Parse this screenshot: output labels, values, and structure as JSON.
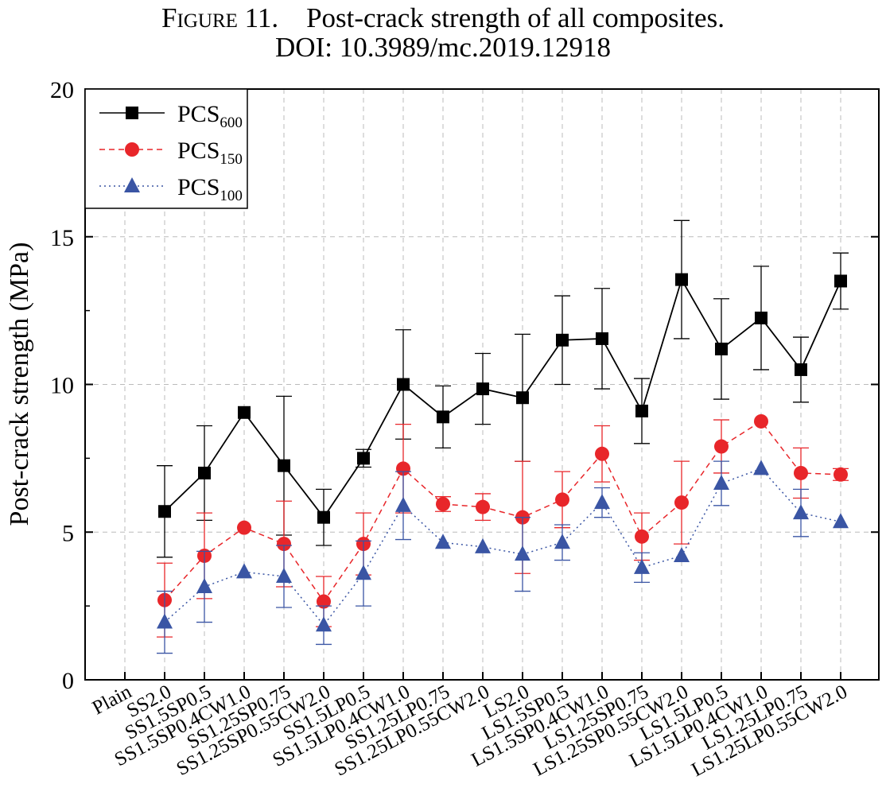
{
  "figure": {
    "label": "Figure 11.",
    "caption": "Post-crack strength of all composites.",
    "doi": "DOI: 10.3989/mc.2019.12918"
  },
  "chart_data": {
    "type": "line",
    "ylabel": "Post-crack strength (MPa)",
    "xlabel": "",
    "ylim": [
      0,
      20
    ],
    "yticks": [
      0,
      5,
      10,
      15,
      20
    ],
    "grid": true,
    "legend_position": "top-left",
    "categories": [
      "Plain",
      "SS2.0",
      "SS1.5SP0.5",
      "SS1.5SP0.4CW1.0",
      "SS1.25SP0.75",
      "SS1.25SP0.55CW2.0",
      "SS1.5LP0.5",
      "SS1.5LP0.4CW1.0",
      "SS1.25LP0.75",
      "SS1.25LP0.55CW2.0",
      "LS2.0",
      "LS1.5SP0.5",
      "LS1.5SP0.4CW1.0",
      "LS1.25SP0.75",
      "LS1.25SP0.55CW2.0",
      "LS1.5LP0.5",
      "LS1.5LP0.4CW1.0",
      "LS1.25LP0.75",
      "LS1.25LP0.55CW2.0"
    ],
    "series": [
      {
        "name": "PCS600",
        "legend_main": "PCS",
        "legend_sub": "600",
        "color": "#000000",
        "marker": "square",
        "line": "solid",
        "values": [
          null,
          5.7,
          7.0,
          9.05,
          7.25,
          5.5,
          7.5,
          10.0,
          8.9,
          9.85,
          9.55,
          11.5,
          11.55,
          9.1,
          13.55,
          11.2,
          12.25,
          10.5,
          13.5
        ],
        "errors": [
          null,
          1.55,
          1.6,
          null,
          2.35,
          0.95,
          0.3,
          1.85,
          1.05,
          1.2,
          2.15,
          1.5,
          1.7,
          1.1,
          2.0,
          1.7,
          1.75,
          1.1,
          0.95
        ]
      },
      {
        "name": "PCS150",
        "legend_main": "PCS",
        "legend_sub": "150",
        "color": "#e8262a",
        "marker": "circle",
        "line": "dashed",
        "values": [
          null,
          2.7,
          4.2,
          5.15,
          4.6,
          2.65,
          4.6,
          7.15,
          5.95,
          5.85,
          5.5,
          6.1,
          7.65,
          4.85,
          6.0,
          7.9,
          8.75,
          7.0,
          6.95
        ],
        "errors": [
          null,
          1.25,
          1.45,
          null,
          1.45,
          0.85,
          1.05,
          1.5,
          0.25,
          0.45,
          1.9,
          0.95,
          0.95,
          0.8,
          1.4,
          0.9,
          null,
          0.85,
          0.2
        ]
      },
      {
        "name": "PCS100",
        "legend_main": "PCS",
        "legend_sub": "100",
        "color": "#3a55a4",
        "marker": "triangle",
        "line": "dotted",
        "values": [
          null,
          1.95,
          3.15,
          3.65,
          3.5,
          1.85,
          3.6,
          5.9,
          4.65,
          4.5,
          4.25,
          4.65,
          6.0,
          3.8,
          4.2,
          6.65,
          7.15,
          5.65,
          5.35
        ],
        "errors": [
          null,
          1.05,
          1.2,
          null,
          1.05,
          0.65,
          1.1,
          1.15,
          null,
          null,
          1.25,
          0.6,
          0.5,
          0.5,
          null,
          0.75,
          null,
          0.8,
          null
        ]
      }
    ]
  }
}
